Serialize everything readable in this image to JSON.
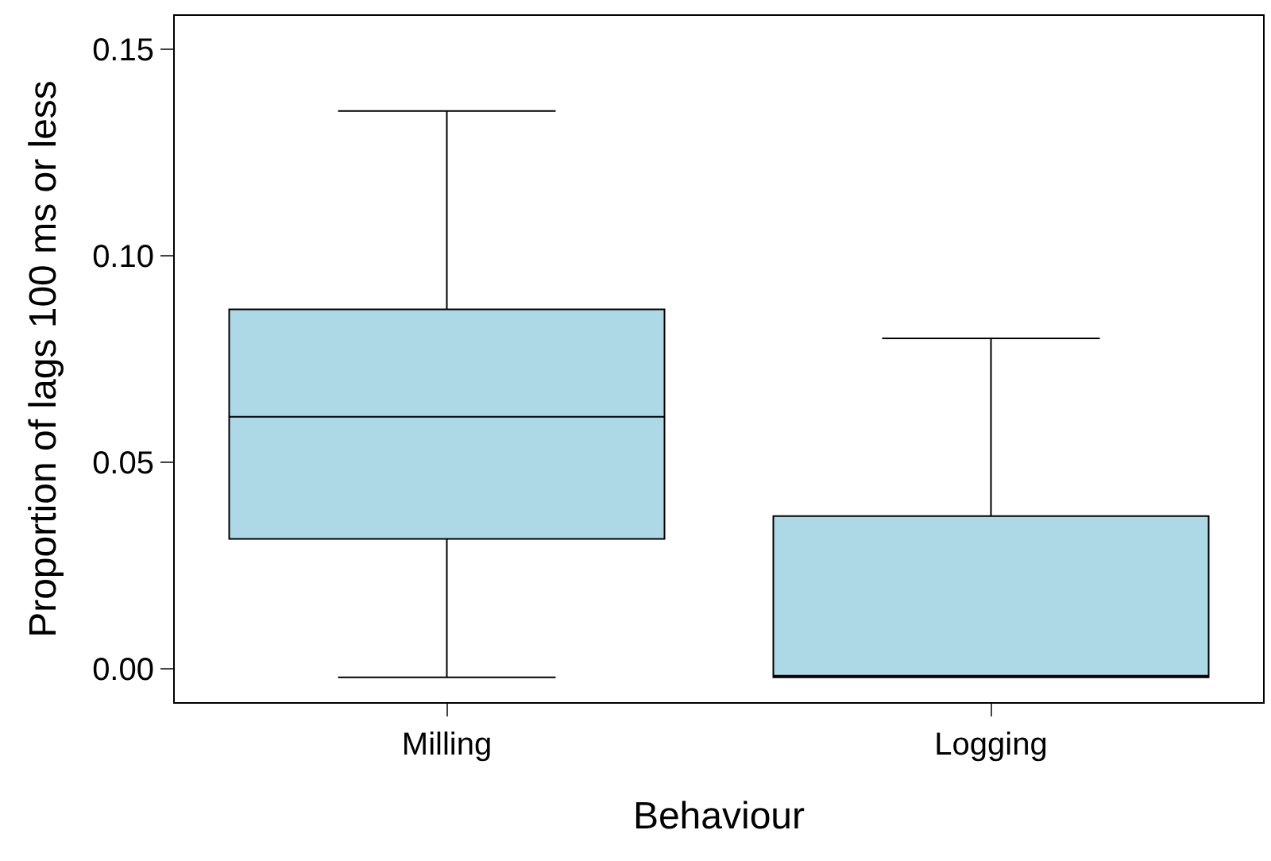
{
  "chart_data": {
    "type": "box",
    "xlabel": "Behaviour",
    "ylabel": "Proportion of lags 100 ms or less",
    "categories": [
      "Milling",
      "Logging"
    ],
    "boxes": [
      {
        "low": -0.002,
        "q1": 0.0315,
        "median": 0.061,
        "q3": 0.087,
        "high": 0.135
      },
      {
        "low": -0.002,
        "q1": -0.002,
        "median": -0.002,
        "q3": 0.037,
        "high": 0.08
      }
    ],
    "color": "#add8e6",
    "ylim": [
      -0.008,
      0.158
    ],
    "yticks": [
      {
        "value": 0,
        "label": "0.00"
      },
      {
        "value": 0.05,
        "label": "0.05"
      },
      {
        "value": 0.1,
        "label": "0.10"
      },
      {
        "value": 0.15,
        "label": "0.15"
      }
    ],
    "grid": false,
    "legend": false
  }
}
